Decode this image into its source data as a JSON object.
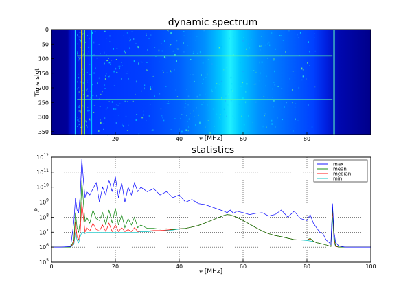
{
  "chart_data": [
    {
      "type": "heatmap",
      "title": "dynamic spectrum",
      "xlabel": "ν [MHz]",
      "ylabel": "Time slot",
      "xlim": [
        0,
        100
      ],
      "ylim": [
        360,
        0
      ],
      "xticks": [
        "20",
        "40",
        "60",
        "80"
      ],
      "yticks": [
        "0",
        "50",
        "100",
        "150",
        "200",
        "250",
        "300",
        "350"
      ],
      "colormap": "jet",
      "features": {
        "vertical_lines_mhz": [
          7.5,
          9.5,
          10.3,
          12.5,
          88.5
        ],
        "horizontal_bands_slot": [
          90,
          240
        ],
        "broad_peak_mhz": 56
      }
    },
    {
      "type": "line",
      "title": "statistics",
      "xlabel": "ν [MHz]",
      "ylabel": "P",
      "yscale": "log",
      "xlim": [
        0,
        100
      ],
      "ylim": [
        100000,
        1000000000000
      ],
      "xticks": [
        "0",
        "20",
        "40",
        "60",
        "80",
        "100"
      ],
      "yticks": [
        "10^5",
        "10^6",
        "10^7",
        "10^8",
        "10^9",
        "10^10",
        "10^11",
        "10^12"
      ],
      "grid": true,
      "legend_position": "top-right",
      "x": [
        0,
        3,
        6,
        7,
        7.5,
        8,
        8.5,
        9,
        9.5,
        10,
        10.5,
        11,
        12,
        13,
        14,
        15,
        16,
        17,
        18,
        19,
        20,
        21,
        22,
        23,
        24,
        25,
        26,
        27,
        28,
        30,
        32,
        34,
        36,
        38,
        40,
        42,
        44,
        46,
        48,
        50,
        52,
        54,
        55,
        56,
        57,
        58,
        60,
        62,
        64,
        66,
        68,
        70,
        72,
        74,
        76,
        78,
        80,
        81,
        82,
        83,
        84,
        85,
        86,
        87,
        87.5,
        88,
        88.5,
        89,
        90,
        92,
        94,
        96,
        98,
        100
      ],
      "series": [
        {
          "name": "max",
          "color": "#0000ff",
          "values": [
            1000000,
            1000000,
            1100000,
            50000000,
            2000000000,
            300000000,
            200000000,
            3000000000,
            800000000000,
            30000000000,
            2000000000,
            5000000000,
            3000000000,
            8000000000,
            20000000000,
            1000000000,
            10000000000,
            3000000000,
            30000000000,
            5000000000,
            50000000000,
            2000000000,
            20000000000,
            1000000000,
            10000000000,
            3000000000,
            20000000000,
            5000000000,
            10000000000,
            5000000000,
            8000000000,
            3000000000,
            5000000000,
            2000000000,
            3000000000,
            1000000000,
            1500000000,
            800000000,
            700000000,
            500000000,
            350000000,
            250000000,
            200000000,
            300000000,
            180000000,
            250000000,
            200000000,
            150000000,
            180000000,
            200000000,
            120000000,
            150000000,
            300000000,
            100000000,
            250000000,
            80000000,
            60000000,
            150000000,
            40000000,
            20000000,
            10000000,
            8000000,
            3000000,
            2000000,
            1500000,
            800000000,
            10000000,
            2000000,
            1200000,
            1000000,
            1000000,
            1000000,
            1000000,
            1000000
          ]
        },
        {
          "name": "mean",
          "color": "#008000",
          "values": [
            1000000,
            1000000,
            1000000,
            3000000,
            200000000,
            20000000,
            10000000,
            50000000,
            30000000000,
            1000000000,
            50000000,
            100000000,
            40000000,
            300000000,
            80000000,
            60000000,
            200000000,
            30000000,
            300000000,
            40000000,
            400000000,
            30000000,
            150000000,
            20000000,
            80000000,
            30000000,
            100000000,
            20000000,
            30000000,
            18000000,
            18000000,
            16000000,
            17000000,
            15000000,
            17000000,
            18000000,
            22000000,
            28000000,
            40000000,
            60000000,
            90000000,
            130000000,
            150000000,
            140000000,
            120000000,
            100000000,
            60000000,
            35000000,
            20000000,
            12000000,
            8000000,
            6000000,
            5000000,
            4000000,
            3200000,
            3000000,
            3000000,
            4000000,
            2500000,
            2000000,
            1800000,
            1600000,
            1400000,
            1200000,
            1100000,
            500000000,
            5000000,
            1200000,
            1000000,
            1000000,
            1000000,
            1000000,
            1000000,
            1000000
          ]
        },
        {
          "name": "median",
          "color": "#ff0000",
          "values": [
            1000000,
            1000000,
            1000000,
            2000000,
            50000000,
            5000000,
            3000000,
            10000000,
            1000000000,
            100000000,
            10000000,
            20000000,
            12000000,
            40000000,
            15000000,
            12000000,
            30000000,
            11000000,
            40000000,
            11000000,
            30000000,
            11000000,
            20000000,
            11000000,
            15000000,
            11000000,
            20000000,
            11000000,
            12000000,
            12000000,
            13000000,
            13000000,
            14000000,
            15000000,
            17000000,
            18000000,
            22000000,
            28000000,
            40000000,
            60000000,
            90000000,
            130000000,
            150000000,
            140000000,
            120000000,
            100000000,
            60000000,
            35000000,
            20000000,
            12000000,
            8000000,
            6000000,
            5000000,
            4000000,
            3200000,
            3000000,
            3000000,
            3500000,
            2500000,
            2000000,
            1800000,
            1600000,
            1400000,
            1200000,
            1100000,
            300000000,
            3000000,
            1100000,
            1000000,
            1000000,
            1000000,
            1000000,
            1000000,
            1000000
          ]
        },
        {
          "name": "min",
          "color": "#00bfbf",
          "values": [
            1000000,
            1000000,
            1000000,
            1500000,
            10000000,
            3000000,
            2000000,
            5000000,
            10000000,
            10000000,
            8000000,
            10000000,
            10000000,
            10000000,
            10000000,
            10000000,
            10000000,
            10000000,
            10000000,
            10000000,
            10000000,
            10000000,
            10000000,
            10000000,
            10000000,
            10000000,
            10000000,
            10000000,
            11000000,
            11000000,
            12000000,
            12000000,
            13000000,
            14000000,
            16000000,
            18000000,
            22000000,
            28000000,
            40000000,
            60000000,
            90000000,
            130000000,
            150000000,
            140000000,
            120000000,
            100000000,
            60000000,
            35000000,
            20000000,
            12000000,
            8000000,
            6000000,
            5000000,
            4000000,
            3200000,
            3000000,
            2800000,
            2600000,
            2400000,
            2000000,
            1800000,
            1600000,
            1400000,
            1200000,
            1100000,
            100000000,
            2000000,
            1100000,
            1000000,
            1000000,
            1000000,
            1000000,
            1000000,
            1000000
          ]
        }
      ]
    }
  ]
}
